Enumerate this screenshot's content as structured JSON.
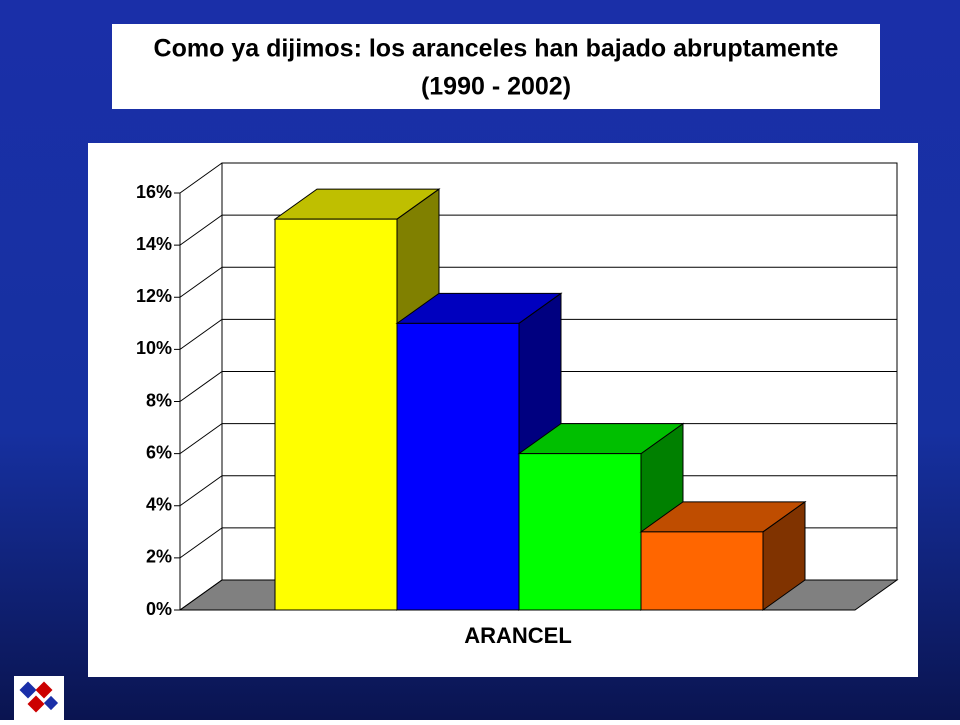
{
  "chart_data": {
    "type": "bar3d",
    "title": "Como ya dijimos: los aranceles han bajado abruptamente",
    "subtitle": "(1990 - 2002)",
    "x_label": "ARANCEL",
    "values": [
      15,
      11,
      6,
      3
    ],
    "colors": [
      "#ffff00",
      "#0000ff",
      "#00ff00",
      "#ff6600"
    ],
    "ylim": [
      0,
      16
    ],
    "yticks": [
      {
        "value": 0,
        "label": "0%"
      },
      {
        "value": 2,
        "label": "2%"
      },
      {
        "value": 4,
        "label": "4%"
      },
      {
        "value": 6,
        "label": "6%"
      },
      {
        "value": 8,
        "label": "8%"
      },
      {
        "value": 10,
        "label": "10%"
      },
      {
        "value": 12,
        "label": "12%"
      },
      {
        "value": 14,
        "label": "14%"
      },
      {
        "value": 16,
        "label": "16%"
      }
    ],
    "grid": true
  }
}
